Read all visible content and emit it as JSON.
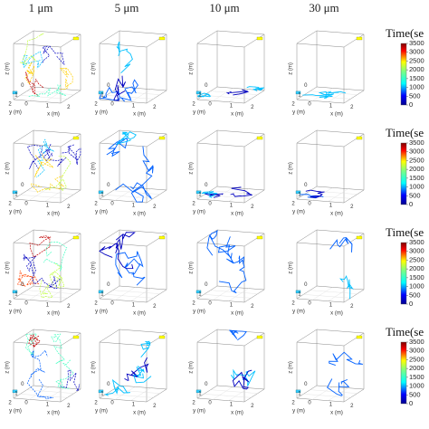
{
  "column_headers": [
    "1 μm",
    "5 μm",
    "10 μm",
    "30 μm"
  ],
  "axis_labels": {
    "x": "x (m)",
    "y": "y (m)",
    "z": "z (m)"
  },
  "axis_ticks": [
    "0",
    "1",
    "2"
  ],
  "colorbar": {
    "title": "Time(se",
    "ticks": [
      0,
      500,
      1000,
      1500,
      2000,
      2500,
      3000,
      3500
    ]
  }
}
